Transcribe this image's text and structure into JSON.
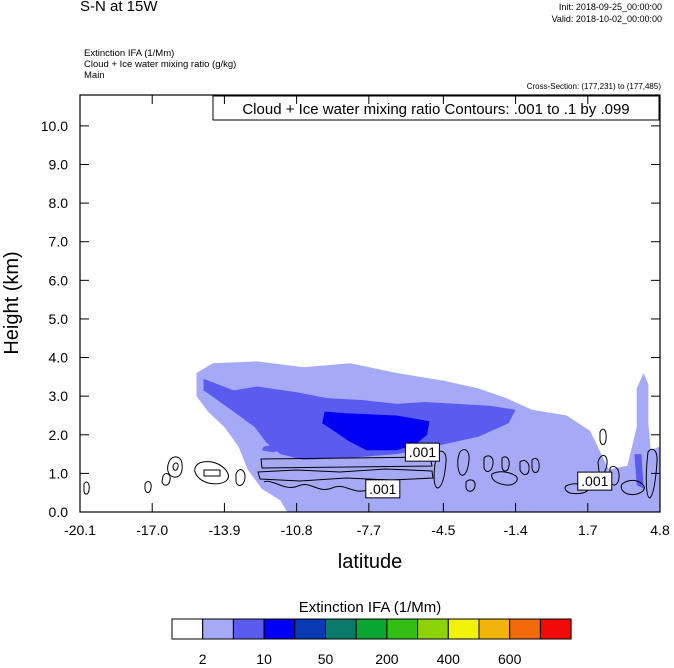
{
  "header": {
    "title": "S-N at 15W",
    "init": "Init: 2018-09-25_00:00:00",
    "valid": "Valid: 2018-10-02_00:00:00",
    "field1": "Extinction IFA   (1/Mm)",
    "field2": "Cloud + Ice water mixing ratio   (g/kg)",
    "field3": "Main",
    "cross_section": "Cross-Section: (177,231) to (177,485)",
    "contour_info": "Cloud + Ice water mixing ratio Contours: .001 to .1 by .099"
  },
  "chart_data": {
    "type": "heatmap",
    "xlabel": "latitude",
    "ylabel": "Height (km)",
    "xlim": [
      -20.1,
      4.8
    ],
    "ylim": [
      0.0,
      10.8
    ],
    "x_ticks": [
      "-20.1",
      "-17.0",
      "-13.9",
      "-10.8",
      "-7.7",
      "-4.5",
      "-1.4",
      "1.7",
      "4.8"
    ],
    "x_tick_values": [
      -20.1,
      -17.0,
      -13.9,
      -10.8,
      -7.7,
      -4.5,
      -1.4,
      1.7,
      4.8
    ],
    "y_ticks": [
      "0.0",
      "1.0",
      "2.0",
      "3.0",
      "4.0",
      "5.0",
      "6.0",
      "7.0",
      "8.0",
      "9.0",
      "10.0"
    ],
    "y_tick_values": [
      0,
      1,
      2,
      3,
      4,
      5,
      6,
      7,
      8,
      9,
      10
    ],
    "contour_labels": [
      {
        "text": ".001",
        "x": -5.4,
        "y": 1.55
      },
      {
        "text": ".001",
        "x": -7.1,
        "y": 0.6
      },
      {
        "text": ".001",
        "x": 2.0,
        "y": 0.8
      }
    ],
    "colorbar": {
      "title": "Extinction IFA  (1/Mm)",
      "colors": [
        "#ffffff",
        "#a6aaf6",
        "#5a5cf0",
        "#0000f2",
        "#0a3ab4",
        "#0a7a6a",
        "#0aa632",
        "#34be14",
        "#8ed20a",
        "#f2f20a",
        "#f2b40a",
        "#f26a0a",
        "#f20a0a"
      ],
      "tick_labels": [
        "2",
        "10",
        "50",
        "200",
        "400",
        "600"
      ]
    },
    "regions": [
      {
        "level": 1,
        "color": "#a6aaf6",
        "polygon": [
          [
            -15.1,
            3.6
          ],
          [
            -14.4,
            3.85
          ],
          [
            -12.5,
            3.9
          ],
          [
            -10.5,
            3.75
          ],
          [
            -8.5,
            3.85
          ],
          [
            -6.5,
            3.6
          ],
          [
            -4.5,
            3.4
          ],
          [
            -3.0,
            3.2
          ],
          [
            -1.8,
            2.95
          ],
          [
            -0.7,
            2.65
          ],
          [
            0.8,
            2.5
          ],
          [
            1.8,
            2.1
          ],
          [
            2.2,
            1.6
          ],
          [
            2.6,
            1.1
          ],
          [
            3.4,
            1.2
          ],
          [
            3.8,
            2.2
          ],
          [
            3.8,
            3.2
          ],
          [
            4.1,
            3.6
          ],
          [
            4.3,
            3.3
          ],
          [
            4.3,
            2.3
          ],
          [
            4.4,
            1.6
          ],
          [
            4.8,
            1.7
          ],
          [
            4.8,
            0.0
          ],
          [
            -11.2,
            0.0
          ],
          [
            -11.5,
            0.3
          ],
          [
            -12.3,
            0.6
          ],
          [
            -12.9,
            1.1
          ],
          [
            -13.3,
            1.7
          ],
          [
            -13.9,
            2.2
          ],
          [
            -14.6,
            2.6
          ],
          [
            -15.1,
            3.0
          ]
        ]
      },
      {
        "level": 2,
        "color": "#5a5cf0",
        "polygon": [
          [
            -14.8,
            3.45
          ],
          [
            -13.5,
            3.15
          ],
          [
            -12.5,
            3.25
          ],
          [
            -10.8,
            3.1
          ],
          [
            -9.5,
            2.95
          ],
          [
            -8.0,
            2.9
          ],
          [
            -6.5,
            2.8
          ],
          [
            -5.3,
            2.85
          ],
          [
            -3.9,
            2.8
          ],
          [
            -2.5,
            2.75
          ],
          [
            -1.4,
            2.65
          ],
          [
            -1.7,
            2.3
          ],
          [
            -3.0,
            1.95
          ],
          [
            -4.5,
            1.75
          ],
          [
            -6.5,
            1.5
          ],
          [
            -8.5,
            1.4
          ],
          [
            -10.5,
            1.35
          ],
          [
            -11.5,
            1.5
          ],
          [
            -12.1,
            1.8
          ],
          [
            -12.6,
            2.2
          ],
          [
            -13.4,
            2.55
          ],
          [
            -14.2,
            2.9
          ],
          [
            -14.8,
            3.15
          ]
        ]
      },
      {
        "level": 3,
        "color": "#0000f2",
        "polygon": [
          [
            -9.6,
            2.6
          ],
          [
            -8.5,
            2.55
          ],
          [
            -6.5,
            2.5
          ],
          [
            -5.1,
            2.35
          ],
          [
            -5.2,
            2.0
          ],
          [
            -5.7,
            1.75
          ],
          [
            -6.5,
            1.6
          ],
          [
            -7.8,
            1.6
          ],
          [
            -8.6,
            1.85
          ],
          [
            -9.2,
            2.1
          ],
          [
            -9.7,
            2.3
          ]
        ]
      },
      {
        "level": 2,
        "color": "#5a5cf0",
        "polygon": [
          [
            -12.2,
            1.7
          ],
          [
            -11.6,
            1.75
          ],
          [
            -11.2,
            1.65
          ],
          [
            -11.8,
            1.55
          ],
          [
            -12.3,
            1.6
          ]
        ]
      },
      {
        "level": 2,
        "color": "#5a5cf0",
        "polygon": [
          [
            3.7,
            1.5
          ],
          [
            4.0,
            1.5
          ],
          [
            4.1,
            0.6
          ],
          [
            3.8,
            0.7
          ]
        ]
      }
    ]
  }
}
